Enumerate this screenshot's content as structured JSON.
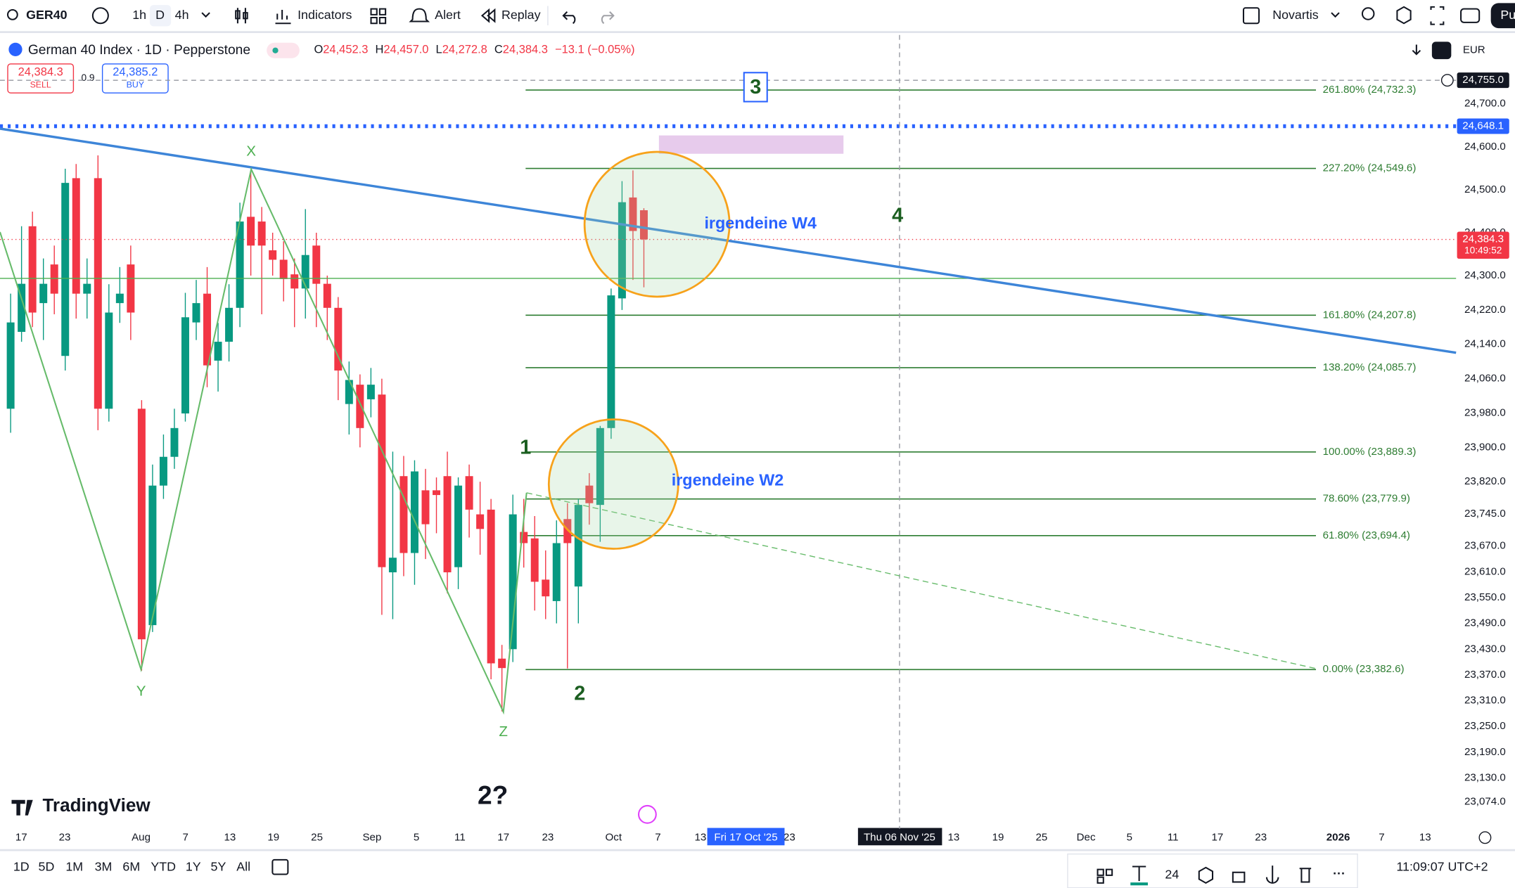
{
  "toolbar": {
    "symbol": "GER40",
    "intervals": [
      "1h",
      "D",
      "4h"
    ],
    "indicators": "Indicators",
    "alert": "Alert",
    "replay": "Replay",
    "watchlist": "Novartis",
    "publish": "Pu"
  },
  "header": {
    "title": "German 40 Index · 1D · Pepperstone",
    "o_label": "O",
    "open": "24,452.3",
    "h_label": "H",
    "high": "24,457.0",
    "l_label": "L",
    "low": "24,272.8",
    "c_label": "C",
    "close": "24,384.3",
    "change": "−13.1 (−0.05%)",
    "sell_price": "24,384.3",
    "sell": "SELL",
    "spread": "0.9",
    "buy_price": "24,385.2",
    "buy": "BUY",
    "currency": "EUR"
  },
  "price_axis": {
    "ticks": [
      {
        "value": 24700,
        "label": "24,700.0"
      },
      {
        "value": 24600,
        "label": "24,600.0"
      },
      {
        "value": 24500,
        "label": "24,500.0"
      },
      {
        "value": 24400,
        "label": "24,400.0"
      },
      {
        "value": 24300,
        "label": "24,300.0"
      },
      {
        "value": 24220,
        "label": "24,220.0"
      },
      {
        "value": 24140,
        "label": "24,140.0"
      },
      {
        "value": 24060,
        "label": "24,060.0"
      },
      {
        "value": 23980,
        "label": "23,980.0"
      },
      {
        "value": 23900,
        "label": "23,900.0"
      },
      {
        "value": 23820,
        "label": "23,820.0"
      },
      {
        "value": 23745,
        "label": "23,745.0"
      },
      {
        "value": 23670,
        "label": "23,670.0"
      },
      {
        "value": 23610,
        "label": "23,610.0"
      },
      {
        "value": 23550,
        "label": "23,550.0"
      },
      {
        "value": 23490,
        "label": "23,490.0"
      },
      {
        "value": 23430,
        "label": "23,430.0"
      },
      {
        "value": 23370,
        "label": "23,370.0"
      },
      {
        "value": 23310,
        "label": "23,310.0"
      },
      {
        "value": 23250,
        "label": "23,250.0"
      },
      {
        "value": 23190,
        "label": "23,190.0"
      },
      {
        "value": 23130,
        "label": "23,130.0"
      },
      {
        "value": 23074,
        "label": "23,074.0"
      }
    ],
    "markers": [
      {
        "value": 24755.0,
        "label": "24,755.0"
      },
      {
        "value": 24648.1,
        "label": "24,648.1"
      },
      {
        "value": 24384.3,
        "label": "24,384.3"
      }
    ],
    "countdown": "10:49:52"
  },
  "time_axis": {
    "labels": [
      "17",
      "23",
      "Aug",
      "7",
      "13",
      "19",
      "25",
      "Sep",
      "5",
      "11",
      "17",
      "23",
      "Oct",
      "7",
      "13",
      "23",
      "13",
      "19",
      "25",
      "Dec",
      "5",
      "11",
      "17",
      "23",
      "2026",
      "7",
      "13"
    ],
    "crosshair_a": "Fri 17 Oct '25",
    "crosshair_b": "Thu 06 Nov '25"
  },
  "fib_levels": [
    {
      "value": 24732.3,
      "label": "261.80% (24,732.3)"
    },
    {
      "value": 24549.6,
      "label": "227.20% (24,549.6)"
    },
    {
      "value": 24207.8,
      "label": "161.80% (24,207.8)"
    },
    {
      "value": 24085.7,
      "label": "138.20% (24,085.7)"
    },
    {
      "value": 23889.3,
      "label": "100.00% (23,889.3)"
    },
    {
      "value": 23779.9,
      "label": "78.60% (23,779.9)"
    },
    {
      "value": 23694.4,
      "label": "61.80% (23,694.4)"
    },
    {
      "value": 23382.6,
      "label": "0.00% (23,382.6)"
    }
  ],
  "annotations": {
    "x": "X",
    "y": "Y",
    "z": "Z",
    "w1": "1",
    "w2": "2",
    "w3": "3",
    "w4": "4",
    "w2q": "2?",
    "w4_note": "irgendeine W4",
    "w2_note": "irgendeine W2"
  },
  "candles": [
    [
      23990,
      24258,
      23934,
      24191
    ],
    [
      24169,
      24415,
      24146,
      24281
    ],
    [
      24415,
      24449,
      24180,
      24214
    ],
    [
      24236,
      24340,
      24150,
      24281
    ],
    [
      24326,
      24370,
      24210,
      24258
    ],
    [
      24113,
      24549,
      24079,
      24516
    ],
    [
      24527,
      24560,
      24200,
      24258
    ],
    [
      24258,
      24340,
      24200,
      24281
    ],
    [
      24527,
      24580,
      23940,
      23990
    ],
    [
      23990,
      24280,
      23960,
      24214
    ],
    [
      24236,
      24320,
      24190,
      24258
    ],
    [
      24326,
      24370,
      24150,
      24214
    ],
    [
      23990,
      24010,
      23380,
      23453
    ],
    [
      23486,
      23860,
      23470,
      23811
    ],
    [
      23811,
      23930,
      23780,
      23878
    ],
    [
      23878,
      23990,
      23850,
      23945
    ],
    [
      23979,
      24260,
      23960,
      24203
    ],
    [
      24191,
      24290,
      24150,
      24236
    ],
    [
      24258,
      24320,
      24040,
      24091
    ],
    [
      24102,
      24190,
      24030,
      24146
    ],
    [
      24146,
      24280,
      24100,
      24225
    ],
    [
      24225,
      24470,
      24180,
      24426
    ],
    [
      24437,
      24545,
      24300,
      24370
    ],
    [
      24426,
      24460,
      24210,
      24370
    ],
    [
      24359,
      24400,
      24300,
      24337
    ],
    [
      24337,
      24380,
      24240,
      24292
    ],
    [
      24303,
      24340,
      24180,
      24270
    ],
    [
      24270,
      24455,
      24200,
      24348
    ],
    [
      24370,
      24400,
      24180,
      24281
    ],
    [
      24281,
      24300,
      24150,
      24225
    ],
    [
      24225,
      24250,
      24010,
      24079
    ],
    [
      24001,
      24100,
      23930,
      24057
    ],
    [
      24046,
      24070,
      23900,
      23945
    ],
    [
      24012,
      24085,
      23970,
      24046
    ],
    [
      24023,
      24060,
      23510,
      23621
    ],
    [
      23609,
      23890,
      23500,
      23643
    ],
    [
      23833,
      23880,
      23600,
      23654
    ],
    [
      23654,
      23870,
      23580,
      23844
    ],
    [
      23800,
      23850,
      23640,
      23721
    ],
    [
      23800,
      23830,
      23700,
      23789
    ],
    [
      23833,
      23890,
      23560,
      23609
    ],
    [
      23621,
      23830,
      23570,
      23811
    ],
    [
      23833,
      23860,
      23690,
      23755
    ],
    [
      23744,
      23820,
      23650,
      23710
    ],
    [
      23755,
      23780,
      23360,
      23397
    ],
    [
      23408,
      23440,
      23285,
      23386
    ],
    [
      23430,
      23790,
      23400,
      23744
    ],
    [
      23703,
      23780,
      23620,
      23677
    ],
    [
      23688,
      23740,
      23520,
      23587
    ],
    [
      23592,
      23660,
      23500,
      23553
    ],
    [
      23542,
      23730,
      23490,
      23677
    ],
    [
      23733,
      23770,
      23385,
      23677
    ],
    [
      23576,
      23780,
      23490,
      23766
    ],
    [
      23811,
      23840,
      23720,
      23770
    ],
    [
      23766,
      23950,
      23680,
      23945
    ],
    [
      23945,
      24270,
      23920,
      24254
    ],
    [
      24247,
      24520,
      24220,
      24471
    ],
    [
      24482,
      24545,
      24290,
      24404
    ],
    [
      24452.3,
      24457.0,
      24272.8,
      24384.3
    ]
  ],
  "watermark": "TradingView",
  "bottom_bar": {
    "ranges": [
      "1D",
      "5D",
      "1M",
      "3M",
      "6M",
      "YTD",
      "1Y",
      "5Y",
      "All"
    ],
    "font_size": "24",
    "clock": "11:09:07 UTC+2"
  }
}
